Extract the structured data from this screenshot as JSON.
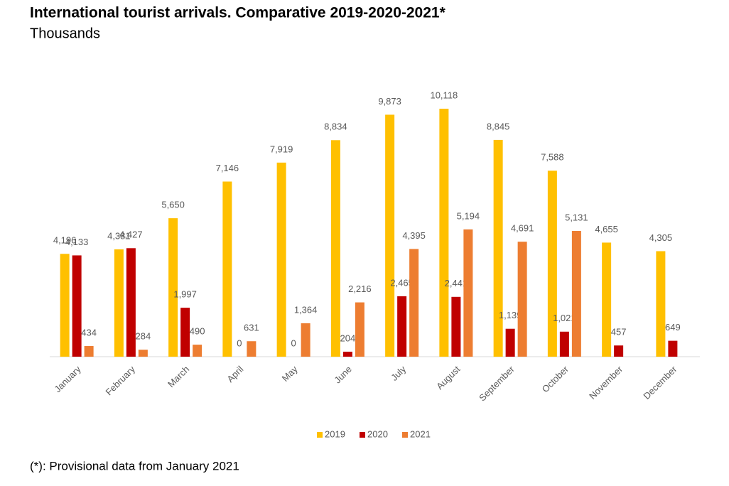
{
  "chart_data": {
    "type": "bar",
    "title": "International tourist arrivals. Comparative 2019-2020-2021*",
    "subtitle": "Thousands",
    "footnote": "(*): Provisional data from January 2021",
    "categories": [
      "January",
      "February",
      "March",
      "April",
      "May",
      "June",
      "July",
      "August",
      "September",
      "October",
      "November",
      "December"
    ],
    "series": [
      {
        "name": "2019",
        "color": "#ffc000",
        "values": [
          4196,
          4381,
          5650,
          7146,
          7919,
          8834,
          9873,
          10118,
          8845,
          7588,
          4655,
          4305
        ],
        "value_labels": [
          "4,196",
          "4,381",
          "5,650",
          "7,146",
          "7,919",
          "8,834",
          "9,873",
          "10,118",
          "8,845",
          "7,588",
          "4,655",
          "4,305"
        ]
      },
      {
        "name": "2020",
        "color": "#c00000",
        "values": [
          4133,
          4427,
          1997,
          0,
          0,
          204,
          2465,
          2441,
          1139,
          1021,
          457,
          649
        ],
        "value_labels": [
          "4,133",
          "4,427",
          "1,997",
          "0",
          "0",
          "204",
          "2,465",
          "2,441",
          "1,139",
          "1,021",
          "457",
          "649"
        ]
      },
      {
        "name": "2021",
        "color": "#ed7d31",
        "values": [
          434,
          284,
          490,
          631,
          1364,
          2216,
          4395,
          5194,
          4691,
          5131,
          null,
          null
        ],
        "value_labels": [
          "434",
          "284",
          "490",
          "631",
          "1,364",
          "2,216",
          "4,395",
          "5,194",
          "4,691",
          "5,131",
          null,
          null
        ]
      }
    ]
  }
}
